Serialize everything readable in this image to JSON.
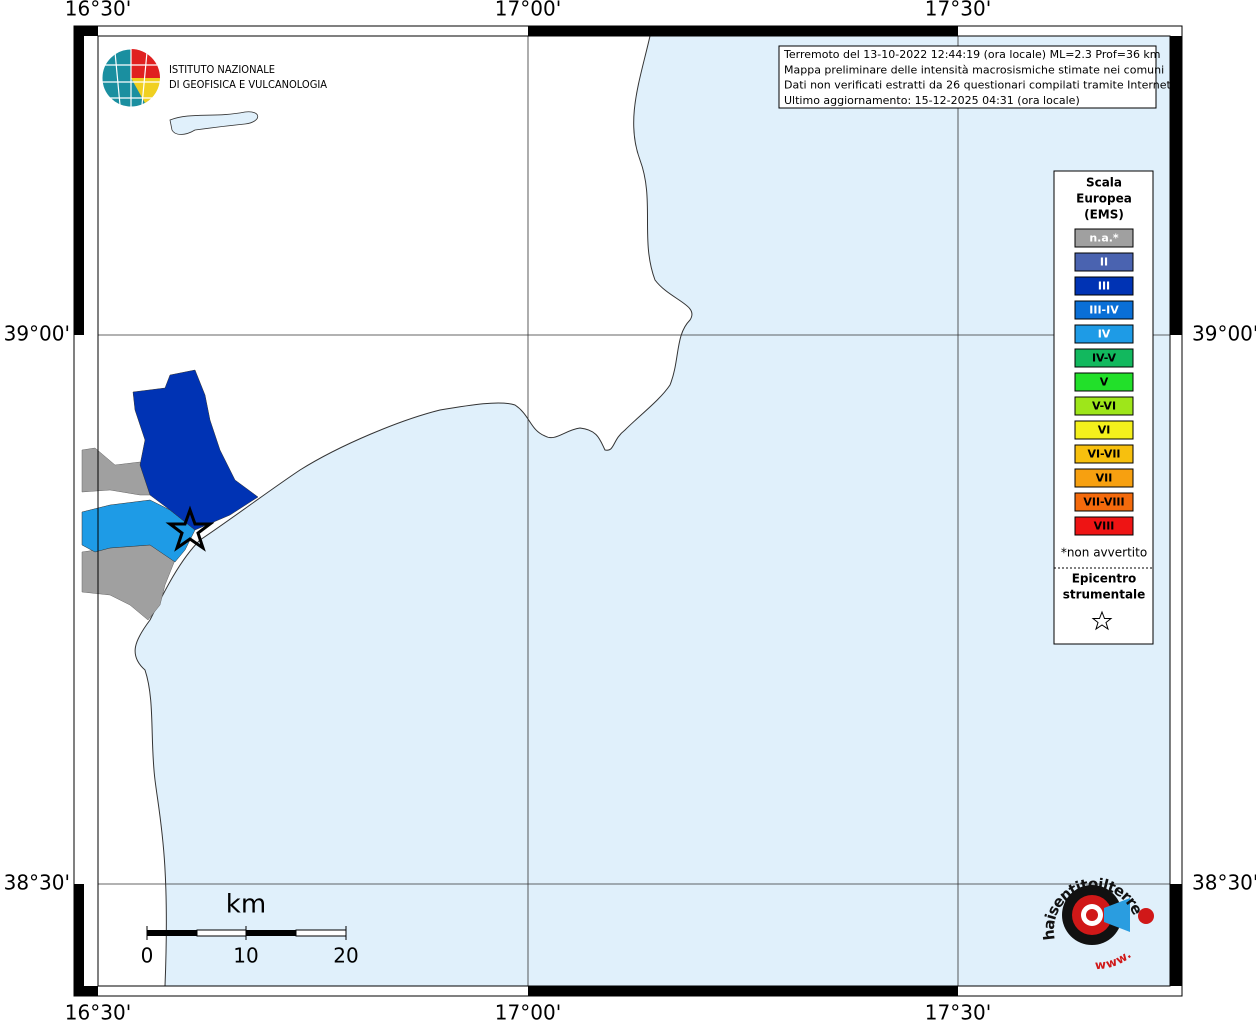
{
  "map": {
    "longitude_labels": [
      "16°30'",
      "17°00'",
      "17°30'"
    ],
    "latitude_labels": [
      "39°00'",
      "38°30'"
    ],
    "logo": {
      "line1": "ISTITUTO NAZIONALE",
      "line2": "DI GEOFISICA E VULCANOLOGIA"
    },
    "info_box": [
      "Terremoto del 13-10-2022 12:44:19 (ora locale) ML=2.3 Prof=36 km",
      "Mappa preliminare delle intensità macrosismiche stimate nei comuni",
      "Dati non verificati estratti da 26 questionari compilati tramite Internet.",
      "Ultimo aggiornamento: 15-12-2025 04:31 (ora locale)"
    ],
    "legend": {
      "title": [
        "Scala",
        "Europea",
        "(EMS)"
      ],
      "items": [
        {
          "label": "n.a.*",
          "color": "#a0a0a0",
          "text_color": "#ffffff"
        },
        {
          "label": "II",
          "color": "#4a63b0",
          "text_color": "#ffffff"
        },
        {
          "label": "III",
          "color": "#0033b4",
          "text_color": "#ffffff"
        },
        {
          "label": "III-IV",
          "color": "#0a6fd6",
          "text_color": "#ffffff"
        },
        {
          "label": "IV",
          "color": "#1e9be6",
          "text_color": "#ffffff"
        },
        {
          "label": "IV-V",
          "color": "#12b85e",
          "text_color": "#000000"
        },
        {
          "label": "V",
          "color": "#22e02a",
          "text_color": "#000000"
        },
        {
          "label": "V-VI",
          "color": "#9ee61a",
          "text_color": "#000000"
        },
        {
          "label": "VI",
          "color": "#f4f01c",
          "text_color": "#000000"
        },
        {
          "label": "VI-VII",
          "color": "#f7c00e",
          "text_color": "#000000"
        },
        {
          "label": "VII",
          "color": "#f7a010",
          "text_color": "#000000"
        },
        {
          "label": "VII-VIII",
          "color": "#f46a0c",
          "text_color": "#000000"
        },
        {
          "label": "VIII",
          "color": "#ee1414",
          "text_color": "#000000"
        }
      ],
      "footnote": "*non avvertito",
      "epicenter": [
        "Epicentro",
        "strumentale"
      ]
    },
    "scale_bar": {
      "unit": "km",
      "labels": [
        "0",
        "10",
        "20"
      ]
    },
    "site_logo": {
      "text": "haisentitoilterremoto.it",
      "www": "www."
    }
  }
}
